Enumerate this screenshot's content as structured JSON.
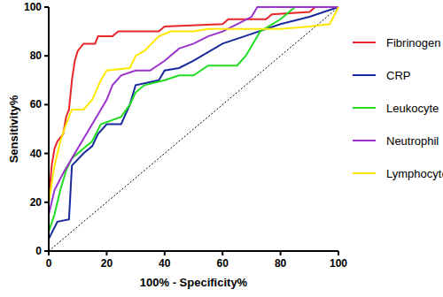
{
  "chart_data": {
    "type": "line",
    "x_label": "100% - Specificity%",
    "y_label": "Sensitivity%",
    "xlim": [
      0,
      100
    ],
    "ylim": [
      0,
      100
    ],
    "xticks": [
      0,
      20,
      40,
      60,
      80,
      100
    ],
    "yticks": [
      0,
      20,
      40,
      60,
      80,
      100
    ],
    "grid": false,
    "legend": "right",
    "series": [
      {
        "name": "Fibrinogen",
        "color": "#e8262a",
        "x": [
          0,
          0,
          1,
          2,
          3,
          5,
          6,
          7,
          8,
          9,
          10,
          12,
          16,
          17,
          22,
          24,
          38,
          40,
          60,
          62,
          75,
          77,
          90,
          92,
          100
        ],
        "values": [
          0,
          20,
          35,
          42,
          45,
          48,
          55,
          58,
          70,
          78,
          82,
          85,
          85,
          88,
          88,
          90,
          90,
          92,
          93,
          95,
          95,
          97,
          98,
          100,
          100
        ]
      },
      {
        "name": "CRP",
        "color": "#1a2a9c",
        "x": [
          0,
          0,
          3,
          7,
          8,
          12,
          15,
          17,
          20,
          25,
          28,
          30,
          38,
          40,
          45,
          50,
          60,
          70,
          80,
          90,
          100
        ],
        "values": [
          0,
          5,
          12,
          13,
          35,
          40,
          43,
          48,
          52,
          52,
          60,
          68,
          70,
          74,
          75,
          78,
          85,
          89,
          93,
          96,
          100
        ]
      },
      {
        "name": "Leukocyte",
        "color": "#22dd22",
        "x": [
          0,
          0,
          2,
          4,
          6,
          8,
          12,
          15,
          18,
          25,
          28,
          30,
          33,
          40,
          45,
          50,
          55,
          65,
          68,
          73,
          80,
          85,
          100
        ],
        "values": [
          0,
          8,
          15,
          25,
          33,
          38,
          42,
          45,
          52,
          55,
          60,
          65,
          68,
          70,
          72,
          72,
          76,
          76,
          80,
          90,
          95,
          100,
          100
        ]
      },
      {
        "name": "Neutrophil",
        "color": "#9933cc",
        "x": [
          0,
          0,
          2,
          5,
          8,
          10,
          13,
          15,
          18,
          20,
          22,
          25,
          30,
          35,
          40,
          45,
          50,
          55,
          60,
          65,
          70,
          72,
          100
        ],
        "values": [
          0,
          15,
          25,
          32,
          38,
          42,
          48,
          52,
          58,
          62,
          68,
          72,
          74,
          74,
          78,
          83,
          85,
          88,
          90,
          93,
          96,
          100,
          100
        ]
      },
      {
        "name": "Lymphocyte",
        "color": "#ffe800",
        "x": [
          0,
          0,
          2,
          4,
          6,
          8,
          12,
          15,
          18,
          20,
          28,
          30,
          33,
          38,
          42,
          50,
          55,
          70,
          80,
          90,
          97,
          100
        ],
        "values": [
          0,
          20,
          35,
          45,
          52,
          58,
          58,
          62,
          70,
          74,
          75,
          80,
          82,
          88,
          90,
          90,
          91,
          91,
          91,
          92,
          93,
          100
        ]
      }
    ]
  }
}
